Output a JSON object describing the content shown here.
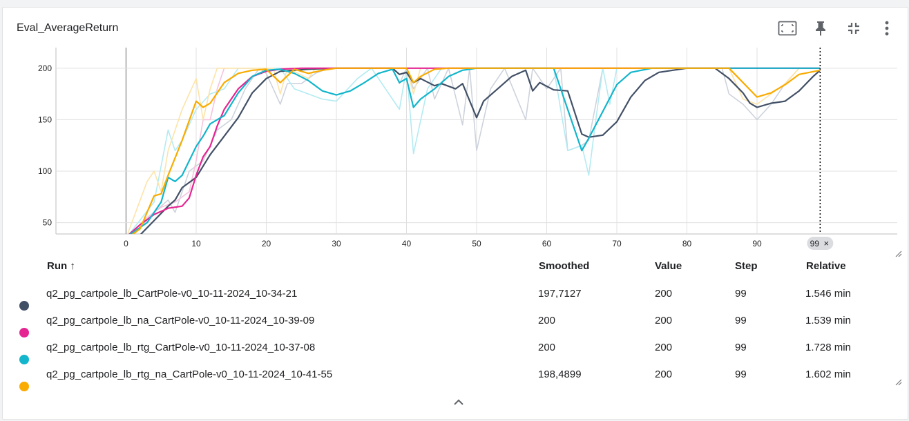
{
  "card": {
    "title": "Eval_AverageReturn"
  },
  "toolbar": {
    "icons": [
      "fit-to-screen-icon",
      "pin-icon",
      "collapse-icon",
      "more-vert-icon"
    ]
  },
  "hover": {
    "step_label": "99",
    "close_glyph": "×"
  },
  "table": {
    "headers": {
      "run": "Run ↑",
      "smoothed": "Smoothed",
      "value": "Value",
      "step": "Step",
      "relative": "Relative"
    },
    "rows": [
      {
        "name": "q2_pg_cartpole_lb_CartPole-v0_10-11-2024_10-34-21",
        "smoothed": "197,7127",
        "value": "200",
        "step": "99",
        "relative": "1.546 min",
        "color": "#425066"
      },
      {
        "name": "q2_pg_cartpole_lb_na_CartPole-v0_10-11-2024_10-39-09",
        "smoothed": "200",
        "value": "200",
        "step": "99",
        "relative": "1.539 min",
        "color": "#e52592"
      },
      {
        "name": "q2_pg_cartpole_lb_rtg_CartPole-v0_10-11-2024_10-37-08",
        "smoothed": "200",
        "value": "200",
        "step": "99",
        "relative": "1.728 min",
        "color": "#12b5cb"
      },
      {
        "name": "q2_pg_cartpole_lb_rtg_na_CartPole-v0_10-11-2024_10-41-55",
        "smoothed": "198,4899",
        "value": "200",
        "step": "99",
        "relative": "1.602 min",
        "color": "#f9ab00"
      }
    ]
  },
  "chart_data": {
    "type": "line",
    "title": "Eval_AverageReturn",
    "xlabel": "",
    "ylabel": "",
    "xlim": [
      -10,
      110
    ],
    "ylim": [
      39,
      220
    ],
    "x_ticks": [
      0,
      10,
      20,
      30,
      40,
      50,
      60,
      70,
      80,
      90
    ],
    "y_ticks": [
      50,
      100,
      150,
      200
    ],
    "grid": true,
    "hover_step": 99,
    "series": [
      {
        "name": "q2_pg_cartpole_lb_CartPole-v0_10-11-2024_10-34-21",
        "color": "#425066",
        "raw_color": "#cdd2dc",
        "smoothed": [
          [
            0,
            32
          ],
          [
            2,
            38
          ],
          [
            4,
            52
          ],
          [
            6,
            66
          ],
          [
            7,
            72
          ],
          [
            8,
            84
          ],
          [
            10,
            94
          ],
          [
            12,
            116
          ],
          [
            14,
            134
          ],
          [
            16,
            152
          ],
          [
            18,
            176
          ],
          [
            20,
            190
          ],
          [
            22,
            197
          ],
          [
            26,
            199
          ],
          [
            30,
            200
          ],
          [
            38,
            200
          ],
          [
            39,
            194
          ],
          [
            40,
            196
          ],
          [
            41,
            186
          ],
          [
            42,
            190
          ],
          [
            44,
            183
          ],
          [
            45,
            185
          ],
          [
            47,
            180
          ],
          [
            48,
            185
          ],
          [
            50,
            152
          ],
          [
            51,
            168
          ],
          [
            53,
            180
          ],
          [
            55,
            192
          ],
          [
            57,
            198
          ],
          [
            58,
            178
          ],
          [
            59,
            186
          ],
          [
            61,
            179
          ],
          [
            63,
            178
          ],
          [
            65,
            136
          ],
          [
            66,
            133
          ],
          [
            68,
            135
          ],
          [
            70,
            148
          ],
          [
            72,
            172
          ],
          [
            74,
            188
          ],
          [
            76,
            196
          ],
          [
            80,
            200
          ],
          [
            84,
            200
          ],
          [
            86,
            190
          ],
          [
            88,
            176
          ],
          [
            89,
            166
          ],
          [
            90,
            162
          ],
          [
            92,
            166
          ],
          [
            94,
            168
          ],
          [
            96,
            178
          ],
          [
            98,
            192
          ],
          [
            99,
            198
          ]
        ],
        "raw": [
          [
            0,
            30
          ],
          [
            4,
            60
          ],
          [
            6,
            72
          ],
          [
            7,
            60
          ],
          [
            9,
            100
          ],
          [
            11,
            110
          ],
          [
            13,
            140
          ],
          [
            15,
            150
          ],
          [
            17,
            180
          ],
          [
            19,
            200
          ],
          [
            20,
            195
          ],
          [
            22,
            165
          ],
          [
            23,
            185
          ],
          [
            25,
            185
          ],
          [
            27,
            195
          ],
          [
            29,
            200
          ],
          [
            38,
            200
          ],
          [
            39,
            185
          ],
          [
            40,
            200
          ],
          [
            41,
            180
          ],
          [
            43,
            200
          ],
          [
            44,
            170
          ],
          [
            46,
            200
          ],
          [
            48,
            145
          ],
          [
            49,
            200
          ],
          [
            50,
            120
          ],
          [
            52,
            180
          ],
          [
            54,
            200
          ],
          [
            57,
            150
          ],
          [
            58,
            200
          ],
          [
            60,
            180
          ],
          [
            62,
            200
          ],
          [
            63,
            120
          ],
          [
            65,
            125
          ],
          [
            66,
            130
          ],
          [
            68,
            200
          ],
          [
            85,
            200
          ],
          [
            86,
            175
          ],
          [
            88,
            165
          ],
          [
            90,
            150
          ],
          [
            92,
            165
          ],
          [
            94,
            185
          ],
          [
            96,
            200
          ],
          [
            99,
            200
          ]
        ]
      },
      {
        "name": "q2_pg_cartpole_lb_na_CartPole-v0_10-11-2024_10-39-09",
        "color": "#e52592",
        "raw_color": "#f7c2dc",
        "smoothed": [
          [
            0,
            36
          ],
          [
            2,
            48
          ],
          [
            4,
            58
          ],
          [
            6,
            64
          ],
          [
            8,
            66
          ],
          [
            9,
            74
          ],
          [
            10,
            96
          ],
          [
            11,
            114
          ],
          [
            12,
            124
          ],
          [
            13,
            144
          ],
          [
            14,
            160
          ],
          [
            16,
            180
          ],
          [
            18,
            192
          ],
          [
            20,
            197
          ],
          [
            22,
            199
          ],
          [
            25,
            200
          ],
          [
            99,
            200
          ]
        ],
        "raw": [
          [
            0,
            35
          ],
          [
            3,
            55
          ],
          [
            5,
            65
          ],
          [
            7,
            70
          ],
          [
            9,
            80
          ],
          [
            10,
            110
          ],
          [
            11,
            150
          ],
          [
            12,
            150
          ],
          [
            13,
            180
          ],
          [
            14,
            200
          ],
          [
            16,
            200
          ],
          [
            99,
            200
          ]
        ]
      },
      {
        "name": "q2_pg_cartpole_lb_rtg_CartPole-v0_10-11-2024_10-37-08",
        "color": "#12b5cb",
        "raw_color": "#b3ebf2",
        "smoothed": [
          [
            0,
            36
          ],
          [
            3,
            50
          ],
          [
            5,
            70
          ],
          [
            6,
            94
          ],
          [
            7,
            90
          ],
          [
            8,
            96
          ],
          [
            10,
            124
          ],
          [
            11,
            134
          ],
          [
            12,
            146
          ],
          [
            14,
            154
          ],
          [
            16,
            176
          ],
          [
            18,
            192
          ],
          [
            20,
            198
          ],
          [
            22,
            199
          ],
          [
            24,
            195
          ],
          [
            26,
            188
          ],
          [
            28,
            178
          ],
          [
            30,
            174
          ],
          [
            32,
            178
          ],
          [
            34,
            186
          ],
          [
            36,
            195
          ],
          [
            38,
            199
          ],
          [
            39,
            186
          ],
          [
            40,
            190
          ],
          [
            41,
            162
          ],
          [
            42,
            170
          ],
          [
            44,
            180
          ],
          [
            46,
            192
          ],
          [
            48,
            198
          ],
          [
            50,
            200
          ],
          [
            61,
            200
          ],
          [
            63,
            160
          ],
          [
            65,
            120
          ],
          [
            66,
            132
          ],
          [
            68,
            158
          ],
          [
            70,
            184
          ],
          [
            72,
            196
          ],
          [
            75,
            200
          ],
          [
            99,
            200
          ]
        ],
        "raw": [
          [
            0,
            35
          ],
          [
            4,
            70
          ],
          [
            6,
            140
          ],
          [
            7,
            120
          ],
          [
            8,
            130
          ],
          [
            10,
            160
          ],
          [
            12,
            175
          ],
          [
            14,
            180
          ],
          [
            16,
            200
          ],
          [
            22,
            200
          ],
          [
            24,
            180
          ],
          [
            26,
            175
          ],
          [
            28,
            170
          ],
          [
            30,
            168
          ],
          [
            33,
            190
          ],
          [
            35,
            200
          ],
          [
            39,
            160
          ],
          [
            40,
            200
          ],
          [
            41,
            117
          ],
          [
            43,
            180
          ],
          [
            45,
            200
          ],
          [
            61,
            200
          ],
          [
            63,
            120
          ],
          [
            65,
            125
          ],
          [
            66,
            96
          ],
          [
            67,
            150
          ],
          [
            68,
            200
          ],
          [
            69,
            165
          ],
          [
            70,
            200
          ],
          [
            99,
            200
          ]
        ]
      },
      {
        "name": "q2_pg_cartpole_lb_rtg_na_CartPole-v0_10-11-2024_10-41-55",
        "color": "#f9ab00",
        "raw_color": "#fde3a7",
        "smoothed": [
          [
            0,
            34
          ],
          [
            2,
            44
          ],
          [
            4,
            76
          ],
          [
            5,
            78
          ],
          [
            6,
            96
          ],
          [
            8,
            130
          ],
          [
            10,
            168
          ],
          [
            11,
            162
          ],
          [
            12,
            166
          ],
          [
            14,
            186
          ],
          [
            16,
            195
          ],
          [
            18,
            198
          ],
          [
            20,
            199
          ],
          [
            22,
            186
          ],
          [
            24,
            199
          ],
          [
            26,
            195
          ],
          [
            28,
            198
          ],
          [
            30,
            200
          ],
          [
            40,
            200
          ],
          [
            41,
            186
          ],
          [
            42,
            192
          ],
          [
            44,
            199
          ],
          [
            46,
            200
          ],
          [
            86,
            200
          ],
          [
            88,
            186
          ],
          [
            90,
            172
          ],
          [
            92,
            176
          ],
          [
            94,
            184
          ],
          [
            96,
            194
          ],
          [
            99,
            198
          ]
        ],
        "raw": [
          [
            0,
            35
          ],
          [
            3,
            90
          ],
          [
            4,
            100
          ],
          [
            5,
            80
          ],
          [
            6,
            120
          ],
          [
            8,
            160
          ],
          [
            10,
            190
          ],
          [
            11,
            150
          ],
          [
            12,
            180
          ],
          [
            13,
            200
          ],
          [
            21,
            200
          ],
          [
            22,
            175
          ],
          [
            23,
            200
          ],
          [
            26,
            190
          ],
          [
            27,
            200
          ],
          [
            40,
            200
          ],
          [
            41,
            175
          ],
          [
            42,
            200
          ],
          [
            86,
            200
          ],
          [
            88,
            170
          ],
          [
            90,
            165
          ],
          [
            92,
            175
          ],
          [
            94,
            185
          ],
          [
            96,
            200
          ],
          [
            99,
            200
          ]
        ]
      }
    ]
  }
}
